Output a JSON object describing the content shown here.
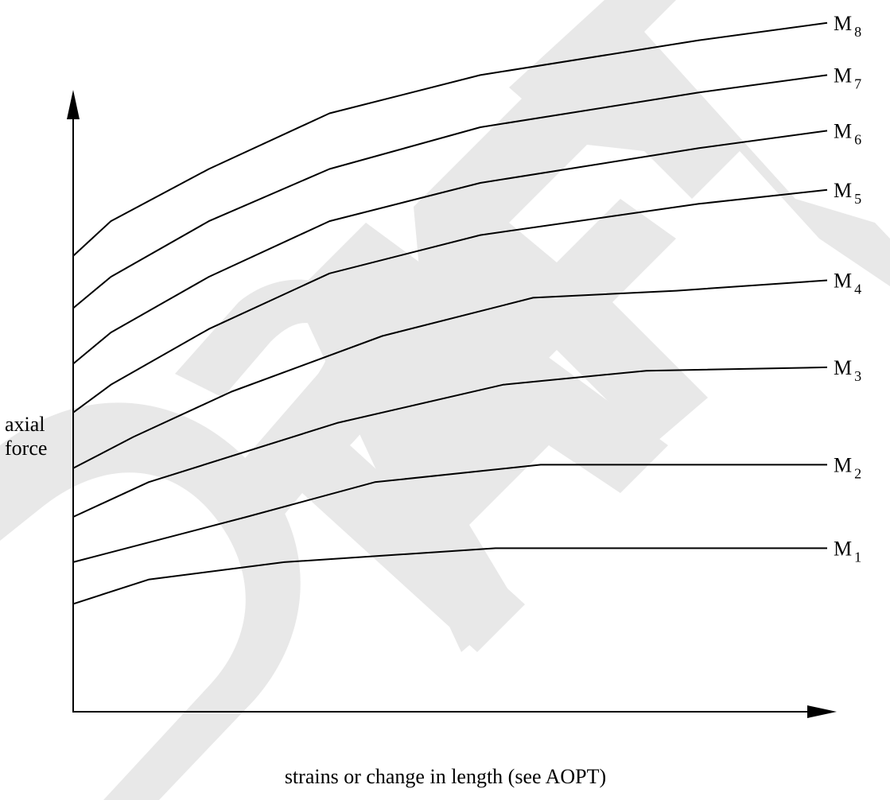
{
  "watermark": "DRAFT",
  "chart_data": {
    "type": "line",
    "ylabel_lines": [
      "axial",
      "force"
    ],
    "xlabel": "strains or change in length (see AOPT)",
    "xlim": [
      0,
      10
    ],
    "ylim": [
      0,
      10
    ],
    "x_ticks_shown": false,
    "y_ticks_shown": false,
    "grid": false,
    "series": [
      {
        "name": "M1",
        "label_main": "M",
        "label_sub": "1",
        "x": [
          0,
          1,
          2.8,
          5.6,
          7.2,
          10
        ],
        "y": [
          1.55,
          1.9,
          2.15,
          2.35,
          2.35,
          2.35
        ]
      },
      {
        "name": "M2",
        "label_main": "M",
        "label_sub": "2",
        "x": [
          0,
          2.3,
          4.0,
          6.2,
          8.0,
          10
        ],
        "y": [
          2.15,
          2.8,
          3.3,
          3.55,
          3.55,
          3.55
        ]
      },
      {
        "name": "M3",
        "label_main": "M",
        "label_sub": "3",
        "x": [
          0,
          1,
          3.5,
          5.7,
          7.6,
          10
        ],
        "y": [
          2.8,
          3.3,
          4.15,
          4.7,
          4.9,
          4.95
        ]
      },
      {
        "name": "M4",
        "label_main": "M",
        "label_sub": "4",
        "x": [
          0,
          0.8,
          2.1,
          4.1,
          6.1,
          8.0,
          10
        ],
        "y": [
          3.5,
          3.95,
          4.6,
          5.4,
          5.95,
          6.05,
          6.2
        ]
      },
      {
        "name": "M5",
        "label_main": "M",
        "label_sub": "5",
        "x": [
          0,
          0.5,
          1.8,
          3.4,
          5.4,
          8.3,
          10
        ],
        "y": [
          4.3,
          4.7,
          5.5,
          6.3,
          6.85,
          7.3,
          7.5
        ]
      },
      {
        "name": "M6",
        "label_main": "M",
        "label_sub": "6",
        "x": [
          0,
          0.5,
          1.8,
          3.4,
          5.4,
          8.3,
          10
        ],
        "y": [
          5.0,
          5.45,
          6.25,
          7.05,
          7.6,
          8.1,
          8.35
        ]
      },
      {
        "name": "M7",
        "label_main": "M",
        "label_sub": "7",
        "x": [
          0,
          0.5,
          1.8,
          3.4,
          5.4,
          8.3,
          10
        ],
        "y": [
          5.8,
          6.25,
          7.05,
          7.8,
          8.4,
          8.9,
          9.15
        ]
      },
      {
        "name": "M8",
        "label_main": "M",
        "label_sub": "8",
        "x": [
          0,
          0.5,
          1.8,
          3.4,
          5.4,
          8.3,
          10
        ],
        "y": [
          6.55,
          7.05,
          7.8,
          8.6,
          9.15,
          9.65,
          9.9
        ]
      }
    ]
  }
}
